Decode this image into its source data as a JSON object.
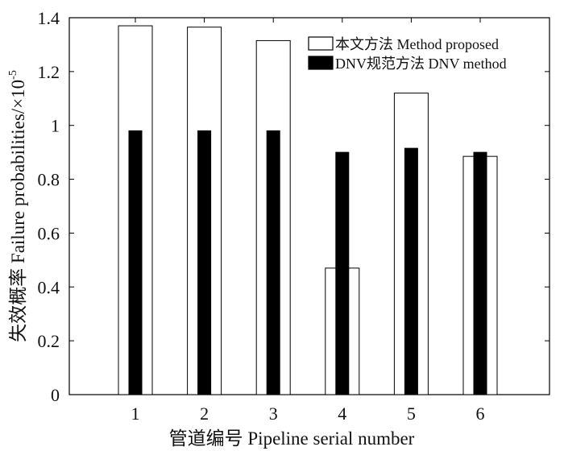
{
  "chart_data": {
    "type": "bar",
    "categories": [
      "1",
      "2",
      "3",
      "4",
      "5",
      "6"
    ],
    "series": [
      {
        "name": "本文方法 Method proposed",
        "values": [
          1.37,
          1.365,
          1.315,
          0.47,
          1.12,
          0.885
        ],
        "color": "#ffffff"
      },
      {
        "name": "DNV规范方法 DNV method",
        "values": [
          0.98,
          0.98,
          0.98,
          0.9,
          0.915,
          0.9
        ],
        "color": "#000000"
      }
    ],
    "xlabel": "管道编号 Pipeline serial number",
    "ylabel": "失效概率 Failure probabilities/×10",
    "ylabel_exponent": "-5",
    "ylim": [
      0,
      1.4
    ],
    "yticks": [
      "0",
      "0.2",
      "0.4",
      "0.6",
      "0.8",
      "1",
      "1.2",
      "1.4"
    ],
    "grid": false,
    "legend_position": "top-right"
  }
}
